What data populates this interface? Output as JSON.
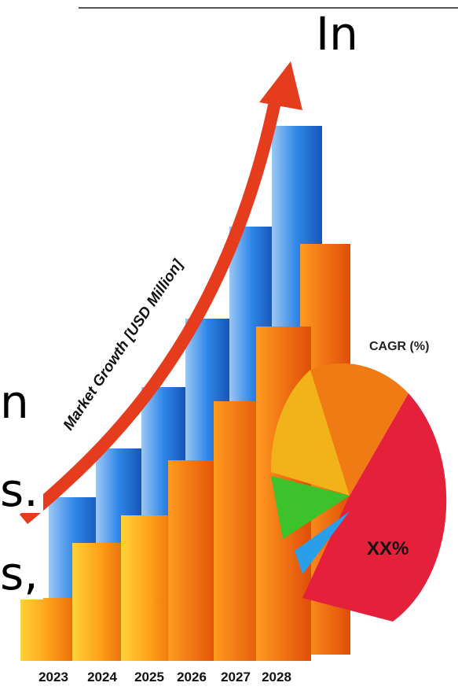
{
  "text_fragments": [
    "In",
    "n",
    "s.",
    "s,"
  ],
  "illustration": {
    "arrow_label": "Market Growth [USD Million]",
    "side_label": "CAGR (%)",
    "pie_label": "XX%",
    "years": [
      "2023",
      "2024",
      "2025",
      "2026",
      "2027",
      "2028"
    ]
  }
}
